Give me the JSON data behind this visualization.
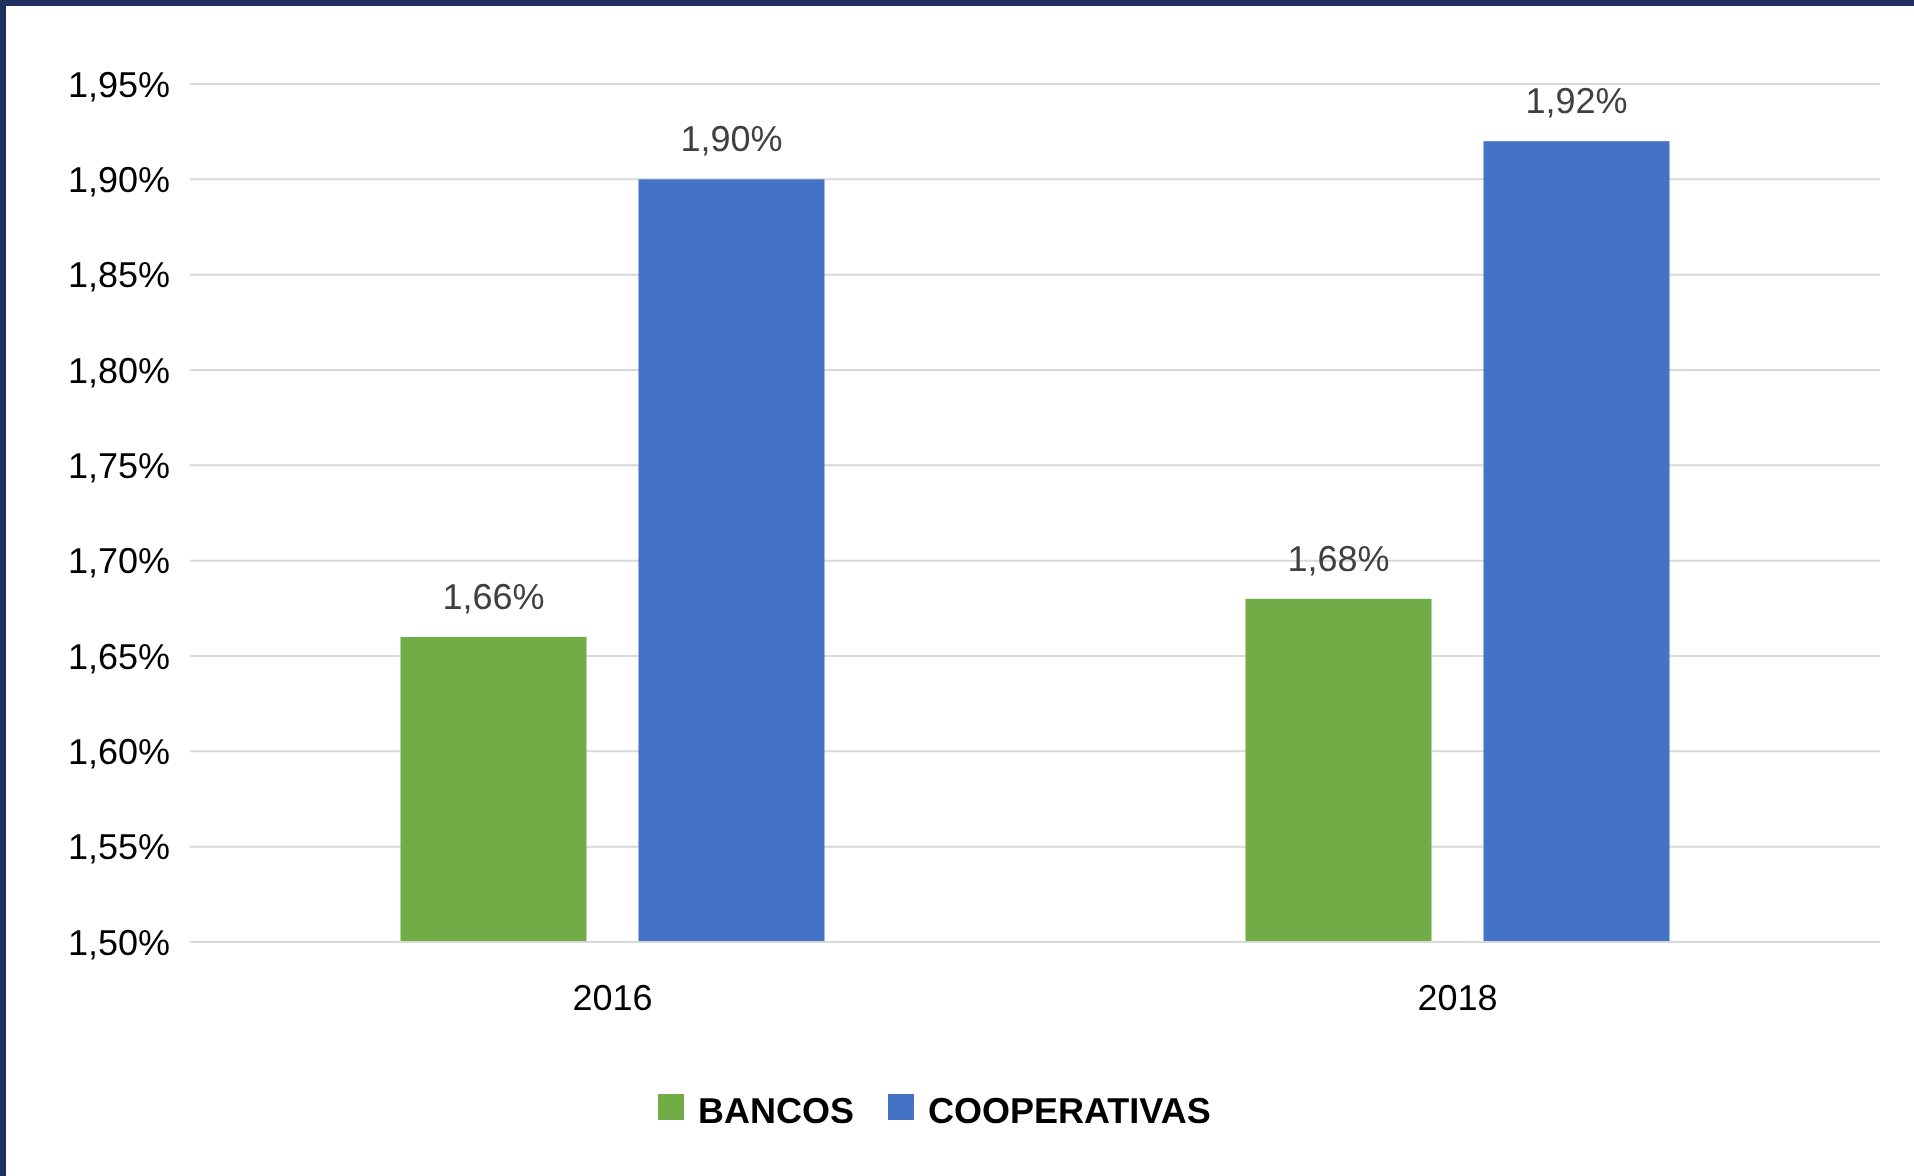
{
  "chart_data": {
    "type": "bar",
    "categories": [
      "2016",
      "2018"
    ],
    "series": [
      {
        "name": "BANCOS",
        "color": "#70ad47",
        "values": [
          1.66,
          1.68
        ],
        "value_labels": [
          "1,66%",
          "1,68%"
        ]
      },
      {
        "name": "COOPERATIVAS",
        "color": "#4472c4",
        "values": [
          1.9,
          1.92
        ],
        "value_labels": [
          "1,90%",
          "1,92%"
        ]
      }
    ],
    "ylim": [
      1.5,
      1.95
    ],
    "yticks": [
      {
        "value": 1.5,
        "label": "1,50%"
      },
      {
        "value": 1.55,
        "label": "1,55%"
      },
      {
        "value": 1.6,
        "label": "1,60%"
      },
      {
        "value": 1.65,
        "label": "1,65%"
      },
      {
        "value": 1.7,
        "label": "1,70%"
      },
      {
        "value": 1.75,
        "label": "1,75%"
      },
      {
        "value": 1.8,
        "label": "1,80%"
      },
      {
        "value": 1.85,
        "label": "1,85%"
      },
      {
        "value": 1.9,
        "label": "1,90%"
      },
      {
        "value": 1.95,
        "label": "1,95%"
      }
    ],
    "grid": "y",
    "legend": "bottom"
  }
}
